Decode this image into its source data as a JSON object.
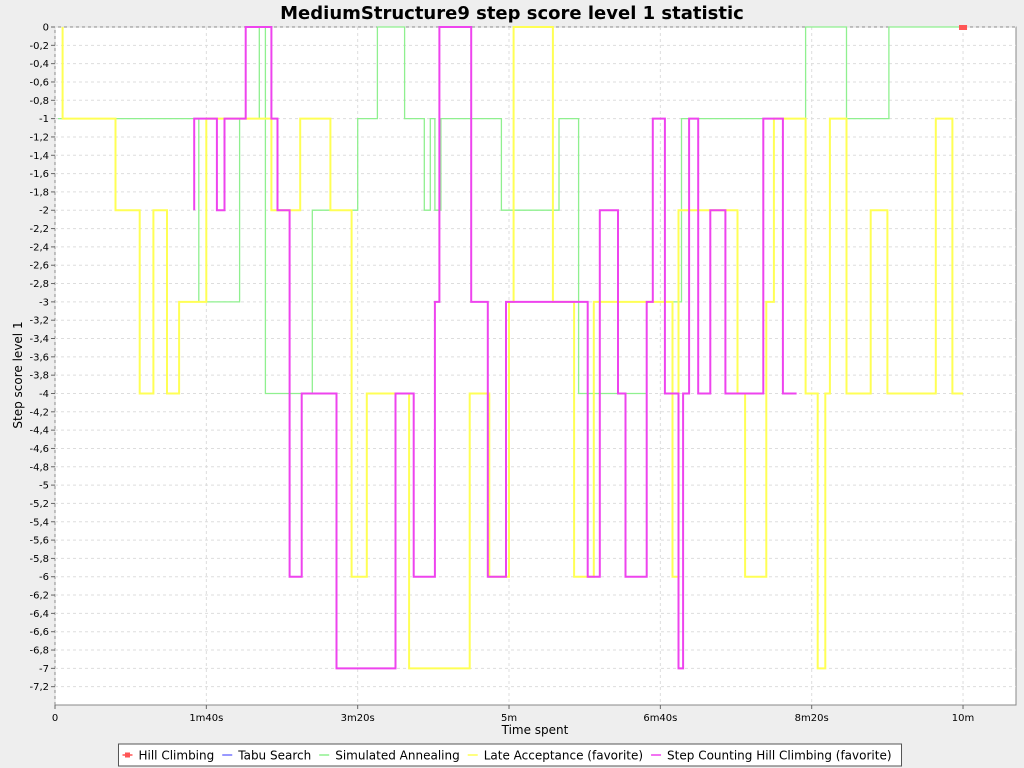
{
  "chart_data": {
    "type": "line",
    "title": "MediumStructure9 step score level 1 statistic",
    "xlabel": "Time spent",
    "ylabel": "Step score level 1",
    "x_unit": "seconds",
    "xlim": [
      0,
      635
    ],
    "ylim": [
      -7.4,
      0
    ],
    "x_ticks": [
      {
        "value": 0,
        "label": "0"
      },
      {
        "value": 100,
        "label": "1m40s"
      },
      {
        "value": 200,
        "label": "3m20s"
      },
      {
        "value": 300,
        "label": "5m"
      },
      {
        "value": 400,
        "label": "6m40s"
      },
      {
        "value": 500,
        "label": "8m20s"
      },
      {
        "value": 600,
        "label": "10m"
      }
    ],
    "y_ticks": [
      {
        "value": 0,
        "label": "0"
      },
      {
        "value": -0.2,
        "label": "-0,2"
      },
      {
        "value": -0.4,
        "label": "-0,4"
      },
      {
        "value": -0.6,
        "label": "-0,6"
      },
      {
        "value": -0.8,
        "label": "-0,8"
      },
      {
        "value": -1,
        "label": "-1"
      },
      {
        "value": -1.2,
        "label": "-1,2"
      },
      {
        "value": -1.4,
        "label": "-1,4"
      },
      {
        "value": -1.6,
        "label": "-1,6"
      },
      {
        "value": -1.8,
        "label": "-1,8"
      },
      {
        "value": -2,
        "label": "-2"
      },
      {
        "value": -2.2,
        "label": "-2,2"
      },
      {
        "value": -2.4,
        "label": "-2,4"
      },
      {
        "value": -2.6,
        "label": "-2,6"
      },
      {
        "value": -2.8,
        "label": "-2,8"
      },
      {
        "value": -3,
        "label": "-3"
      },
      {
        "value": -3.2,
        "label": "-3,2"
      },
      {
        "value": -3.4,
        "label": "-3,4"
      },
      {
        "value": -3.6,
        "label": "-3,6"
      },
      {
        "value": -3.8,
        "label": "-3,8"
      },
      {
        "value": -4,
        "label": "-4"
      },
      {
        "value": -4.2,
        "label": "-4,2"
      },
      {
        "value": -4.4,
        "label": "-4,4"
      },
      {
        "value": -4.6,
        "label": "-4,6"
      },
      {
        "value": -4.8,
        "label": "-4,8"
      },
      {
        "value": -5,
        "label": "-5"
      },
      {
        "value": -5.2,
        "label": "-5,2"
      },
      {
        "value": -5.4,
        "label": "-5,4"
      },
      {
        "value": -5.6,
        "label": "-5,6"
      },
      {
        "value": -5.8,
        "label": "-5,8"
      },
      {
        "value": -6,
        "label": "-6"
      },
      {
        "value": -6.2,
        "label": "-6,2"
      },
      {
        "value": -6.4,
        "label": "-6,4"
      },
      {
        "value": -6.6,
        "label": "-6,6"
      },
      {
        "value": -6.8,
        "label": "-6,8"
      },
      {
        "value": -7,
        "label": "-7"
      },
      {
        "value": -7.2,
        "label": "-7,2"
      }
    ],
    "grid": true,
    "legend_position": "bottom",
    "series": [
      {
        "name": "Hill Climbing",
        "color": "#ff5555",
        "marker": "square",
        "points": [
          [
            599,
            0
          ],
          [
            601,
            0
          ]
        ]
      },
      {
        "name": "Tabu Search",
        "color": "#7777ff",
        "points": []
      },
      {
        "name": "Simulated Annealing",
        "color": "#8ff08f",
        "points": [
          [
            2,
            -1
          ],
          [
            95,
            -1
          ],
          [
            95,
            -3
          ],
          [
            122,
            -3
          ],
          [
            122,
            -1
          ],
          [
            135,
            -1
          ],
          [
            135,
            0
          ],
          [
            139,
            0
          ],
          [
            139,
            -4
          ],
          [
            170,
            -4
          ],
          [
            170,
            -2
          ],
          [
            200,
            -2
          ],
          [
            200,
            -1
          ],
          [
            213,
            -1
          ],
          [
            213,
            0
          ],
          [
            231,
            0
          ],
          [
            231,
            -1
          ],
          [
            244,
            -1
          ],
          [
            244,
            -2
          ],
          [
            248,
            -2
          ],
          [
            248,
            -1
          ],
          [
            251,
            -1
          ],
          [
            251,
            -2
          ],
          [
            255,
            -2
          ],
          [
            255,
            -1
          ],
          [
            295,
            -1
          ],
          [
            295,
            -2
          ],
          [
            333,
            -2
          ],
          [
            333,
            -1
          ],
          [
            346,
            -1
          ],
          [
            346,
            -4
          ],
          [
            391,
            -4
          ],
          [
            391,
            -3
          ],
          [
            414,
            -3
          ],
          [
            414,
            -1
          ],
          [
            496,
            -1
          ],
          [
            496,
            0
          ],
          [
            523,
            0
          ],
          [
            523,
            -1
          ],
          [
            551,
            -1
          ],
          [
            551,
            0
          ],
          [
            599,
            0
          ]
        ]
      },
      {
        "name": "Late Acceptance (favorite)",
        "color": "#ffff55",
        "points": [
          [
            5,
            0
          ],
          [
            5,
            -1
          ],
          [
            40,
            -1
          ],
          [
            40,
            -2
          ],
          [
            56,
            -2
          ],
          [
            56,
            -4
          ],
          [
            65,
            -4
          ],
          [
            65,
            -2
          ],
          [
            74,
            -2
          ],
          [
            74,
            -4
          ],
          [
            82,
            -4
          ],
          [
            82,
            -3
          ],
          [
            100,
            -3
          ],
          [
            100,
            -1
          ],
          [
            143,
            -1
          ],
          [
            143,
            -2
          ],
          [
            162,
            -2
          ],
          [
            162,
            -1
          ],
          [
            182,
            -1
          ],
          [
            182,
            -2
          ],
          [
            196,
            -2
          ],
          [
            196,
            -6
          ],
          [
            206,
            -6
          ],
          [
            206,
            -4
          ],
          [
            234,
            -4
          ],
          [
            234,
            -7
          ],
          [
            274,
            -7
          ],
          [
            274,
            -4
          ],
          [
            287,
            -4
          ],
          [
            287,
            -6
          ],
          [
            300,
            -6
          ],
          [
            300,
            -3
          ],
          [
            303,
            -3
          ],
          [
            303,
            0
          ],
          [
            329,
            0
          ],
          [
            329,
            -3
          ],
          [
            343,
            -3
          ],
          [
            343,
            -6
          ],
          [
            356,
            -6
          ],
          [
            356,
            -3
          ],
          [
            408,
            -3
          ],
          [
            408,
            -6
          ],
          [
            412,
            -6
          ],
          [
            412,
            -2
          ],
          [
            451,
            -2
          ],
          [
            451,
            -4
          ],
          [
            456,
            -4
          ],
          [
            456,
            -6
          ],
          [
            470,
            -6
          ],
          [
            470,
            -3
          ],
          [
            475,
            -3
          ],
          [
            475,
            -1
          ],
          [
            496,
            -1
          ],
          [
            496,
            -4
          ],
          [
            504,
            -4
          ],
          [
            504,
            -7
          ],
          [
            509,
            -7
          ],
          [
            509,
            -4
          ],
          [
            512,
            -4
          ],
          [
            512,
            -1
          ],
          [
            523,
            -1
          ],
          [
            523,
            -4
          ],
          [
            539,
            -4
          ],
          [
            539,
            -2
          ],
          [
            550,
            -2
          ],
          [
            550,
            -4
          ],
          [
            582,
            -4
          ],
          [
            582,
            -1
          ],
          [
            593,
            -1
          ],
          [
            593,
            -4
          ],
          [
            600,
            -4
          ]
        ]
      },
      {
        "name": "Step Counting Hill Climbing (favorite)",
        "color": "#ee44ee",
        "points": [
          [
            92,
            -2
          ],
          [
            92,
            -1
          ],
          [
            107,
            -1
          ],
          [
            107,
            -2
          ],
          [
            112,
            -2
          ],
          [
            112,
            -1
          ],
          [
            126,
            -1
          ],
          [
            126,
            0
          ],
          [
            143,
            0
          ],
          [
            143,
            -1
          ],
          [
            147,
            -1
          ],
          [
            147,
            -2
          ],
          [
            155,
            -2
          ],
          [
            155,
            -6
          ],
          [
            163,
            -6
          ],
          [
            163,
            -4
          ],
          [
            186,
            -4
          ],
          [
            186,
            -7
          ],
          [
            225,
            -7
          ],
          [
            225,
            -4
          ],
          [
            237,
            -4
          ],
          [
            237,
            -6
          ],
          [
            251,
            -6
          ],
          [
            251,
            -3
          ],
          [
            254,
            -3
          ],
          [
            254,
            0
          ],
          [
            275,
            0
          ],
          [
            275,
            -3
          ],
          [
            286,
            -3
          ],
          [
            286,
            -6
          ],
          [
            298,
            -6
          ],
          [
            298,
            -3
          ],
          [
            352,
            -3
          ],
          [
            352,
            -6
          ],
          [
            360,
            -6
          ],
          [
            360,
            -2
          ],
          [
            372,
            -2
          ],
          [
            372,
            -4
          ],
          [
            377,
            -4
          ],
          [
            377,
            -6
          ],
          [
            391,
            -6
          ],
          [
            391,
            -3
          ],
          [
            395,
            -3
          ],
          [
            395,
            -1
          ],
          [
            403,
            -1
          ],
          [
            403,
            -4
          ],
          [
            412,
            -4
          ],
          [
            412,
            -7
          ],
          [
            415,
            -7
          ],
          [
            415,
            -4
          ],
          [
            419,
            -4
          ],
          [
            419,
            -1
          ],
          [
            425,
            -1
          ],
          [
            425,
            -4
          ],
          [
            433,
            -4
          ],
          [
            433,
            -2
          ],
          [
            443,
            -2
          ],
          [
            443,
            -4
          ],
          [
            468,
            -4
          ],
          [
            468,
            -1
          ],
          [
            481,
            -1
          ],
          [
            481,
            -4
          ],
          [
            490,
            -4
          ]
        ]
      }
    ]
  }
}
